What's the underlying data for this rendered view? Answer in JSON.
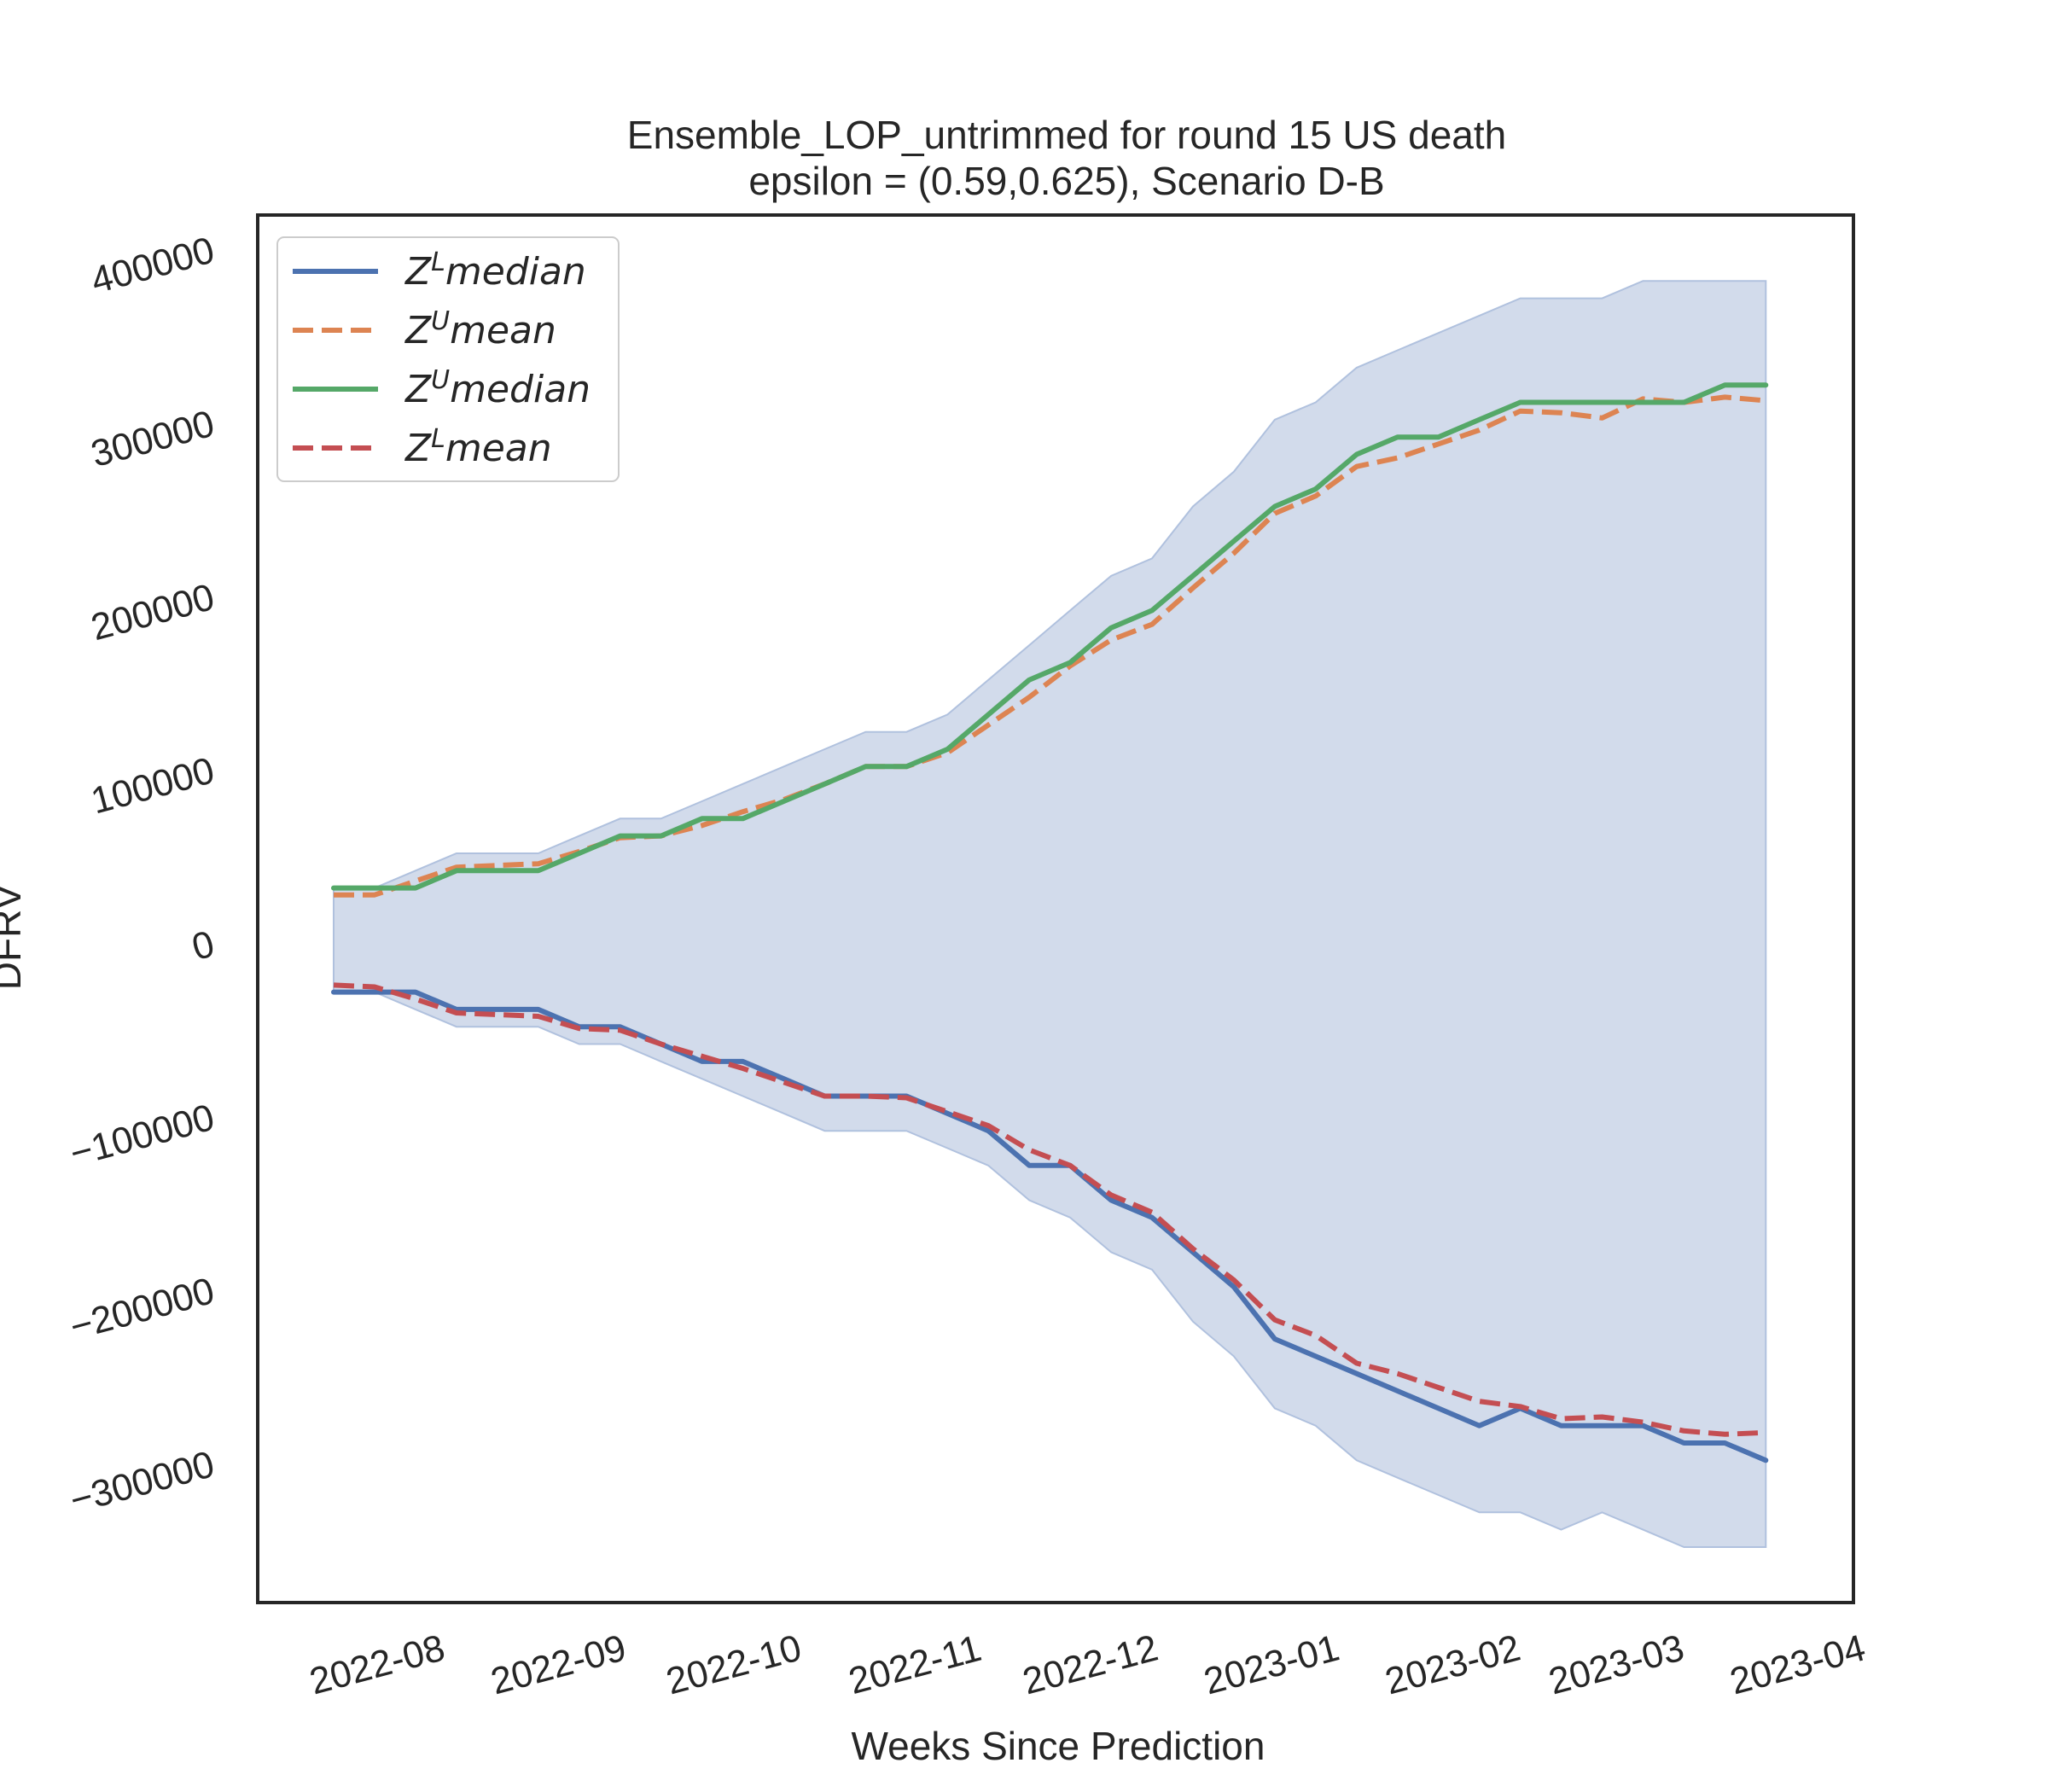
{
  "chart_data": {
    "type": "line",
    "title": "Ensemble_LOP_untrimmed for round 15 US  death",
    "subtitle": "epsilon = (0.59,0.625), Scenario D-B",
    "xlabel": "Weeks Since Prediction",
    "ylabel": "DFRV",
    "ylim": [
      -380000,
      420000
    ],
    "yticks": [
      -300000,
      -200000,
      -100000,
      0,
      100000,
      200000,
      300000,
      400000
    ],
    "ytick_labels": [
      "−300000",
      "−200000",
      "−100000",
      "0",
      "100000",
      "200000",
      "300000",
      "400000"
    ],
    "xlim": [
      "2022-07-11",
      "2023-04-10"
    ],
    "xticks": [
      "2022-08-01",
      "2022-09-01",
      "2022-10-01",
      "2022-11-01",
      "2022-12-01",
      "2023-01-01",
      "2023-02-01",
      "2023-03-01",
      "2023-04-01"
    ],
    "xtick_labels": [
      "2022-08",
      "2022-09",
      "2022-10",
      "2022-11",
      "2022-12",
      "2023-01",
      "2023-02",
      "2023-03",
      "2023-04"
    ],
    "grid": false,
    "legend_position": "top-left",
    "x": [
      "2022-07-24",
      "2022-07-31",
      "2022-08-07",
      "2022-08-14",
      "2022-08-21",
      "2022-08-28",
      "2022-09-04",
      "2022-09-11",
      "2022-09-18",
      "2022-09-25",
      "2022-10-02",
      "2022-10-09",
      "2022-10-16",
      "2022-10-23",
      "2022-10-30",
      "2022-11-06",
      "2022-11-13",
      "2022-11-20",
      "2022-11-27",
      "2022-12-04",
      "2022-12-11",
      "2022-12-18",
      "2022-12-25",
      "2023-01-01",
      "2023-01-08",
      "2023-01-15",
      "2023-01-22",
      "2023-01-29",
      "2023-02-05",
      "2023-02-12",
      "2023-02-19",
      "2023-02-26",
      "2023-03-05",
      "2023-03-12",
      "2023-03-19",
      "2023-03-26"
    ],
    "band": {
      "upper": [
        32000,
        32000,
        42000,
        52000,
        52000,
        52000,
        62000,
        72000,
        72000,
        82000,
        92000,
        102000,
        112000,
        122000,
        122000,
        132000,
        152000,
        172000,
        192000,
        212000,
        222000,
        252000,
        272000,
        302000,
        312000,
        332000,
        342000,
        352000,
        362000,
        372000,
        372000,
        372000,
        382000,
        382000,
        382000,
        382000
      ],
      "lower": [
        -28000,
        -28000,
        -38000,
        -48000,
        -48000,
        -48000,
        -58000,
        -58000,
        -68000,
        -78000,
        -88000,
        -98000,
        -108000,
        -108000,
        -108000,
        -118000,
        -128000,
        -148000,
        -158000,
        -178000,
        -188000,
        -218000,
        -238000,
        -268000,
        -278000,
        -298000,
        -308000,
        -318000,
        -328000,
        -328000,
        -338000,
        -328000,
        -338000,
        -348000,
        -348000,
        -348000
      ],
      "color": "#d2dbeb"
    },
    "series": [
      {
        "name": "median",
        "sup": "L",
        "color": "#4c72b0",
        "dash": "solid",
        "values": [
          -28000,
          -28000,
          -28000,
          -38000,
          -38000,
          -38000,
          -48000,
          -48000,
          -58000,
          -68000,
          -68000,
          -78000,
          -88000,
          -88000,
          -88000,
          -98000,
          -108000,
          -128000,
          -128000,
          -148000,
          -158000,
          -178000,
          -198000,
          -228000,
          -238000,
          -248000,
          -258000,
          -268000,
          -278000,
          -268000,
          -278000,
          -278000,
          -278000,
          -288000,
          -288000,
          -298000
        ]
      },
      {
        "name": "mean",
        "sup": "U",
        "color": "#dd8452",
        "dash": "dashed",
        "values": [
          28000,
          28000,
          36000,
          44000,
          45000,
          46000,
          53000,
          61000,
          62000,
          68000,
          76000,
          83000,
          92000,
          102000,
          102000,
          110000,
          126000,
          142000,
          160000,
          175000,
          184000,
          205000,
          225000,
          248000,
          258000,
          275000,
          280000,
          288000,
          296000,
          307000,
          306000,
          303000,
          314000,
          312000,
          315000,
          313000
        ]
      },
      {
        "name": "median",
        "sup": "U",
        "color": "#55a868",
        "dash": "solid",
        "values": [
          32000,
          32000,
          32000,
          42000,
          42000,
          42000,
          52000,
          62000,
          62000,
          72000,
          72000,
          82000,
          92000,
          102000,
          102000,
          112000,
          132000,
          152000,
          162000,
          182000,
          192000,
          212000,
          232000,
          252000,
          262000,
          282000,
          292000,
          292000,
          302000,
          312000,
          312000,
          312000,
          312000,
          312000,
          322000,
          322000
        ]
      },
      {
        "name": "mean",
        "sup": "L",
        "color": "#c44e52",
        "dash": "dashed",
        "values": [
          -24000,
          -25000,
          -32000,
          -40000,
          -41000,
          -42000,
          -49000,
          -50000,
          -58000,
          -65000,
          -72000,
          -80000,
          -88000,
          -88000,
          -89000,
          -97000,
          -105000,
          -119000,
          -128000,
          -145000,
          -155000,
          -176000,
          -194000,
          -217000,
          -226000,
          -242000,
          -248000,
          -256000,
          -264000,
          -267000,
          -274000,
          -273000,
          -276000,
          -281000,
          -283000,
          -282000
        ]
      }
    ]
  }
}
